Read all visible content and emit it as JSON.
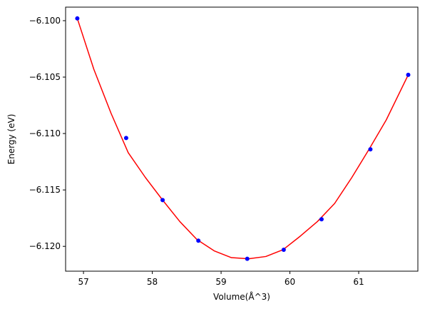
{
  "chart_data": {
    "type": "scatter",
    "title": "",
    "xlabel": "Volume(Å^3)",
    "ylabel": "Energy (eV)",
    "xlim": [
      56.74,
      61.86
    ],
    "ylim": [
      -6.1222,
      -6.0988
    ],
    "x_ticks": [
      57,
      58,
      59,
      60,
      61
    ],
    "x_tick_labels": [
      "57",
      "58",
      "59",
      "60",
      "61"
    ],
    "y_ticks": [
      -6.1,
      -6.105,
      -6.11,
      -6.115,
      -6.12
    ],
    "y_tick_labels": [
      "−6.100",
      "−6.105",
      "−6.110",
      "−6.115",
      "−6.120"
    ],
    "grid": false,
    "series": [
      {
        "kind": "points",
        "color": "#0000ff",
        "marker": "circle",
        "x": [
          56.91,
          57.62,
          58.15,
          58.67,
          59.38,
          59.91,
          60.46,
          61.17,
          61.72
        ],
        "y": [
          -6.0998,
          -6.1104,
          -6.1159,
          -6.1195,
          -6.1211,
          -6.1203,
          -6.1176,
          -6.1114,
          -6.1048
        ]
      },
      {
        "kind": "fit-curve",
        "color": "#ff0000",
        "x": [
          56.91,
          57.15,
          57.4,
          57.65,
          57.9,
          58.15,
          58.4,
          58.65,
          58.9,
          59.15,
          59.4,
          59.65,
          59.9,
          60.15,
          60.4,
          60.65,
          60.9,
          61.15,
          61.4,
          61.72
        ],
        "y": [
          -6.0998,
          -6.1043,
          -6.1082,
          -6.1117,
          -6.1139,
          -6.1159,
          -6.1178,
          -6.1194,
          -6.1204,
          -6.121,
          -6.1211,
          -6.1209,
          -6.1203,
          -6.1191,
          -6.1178,
          -6.1162,
          -6.1139,
          -6.1114,
          -6.1088,
          -6.1048
        ]
      }
    ]
  }
}
